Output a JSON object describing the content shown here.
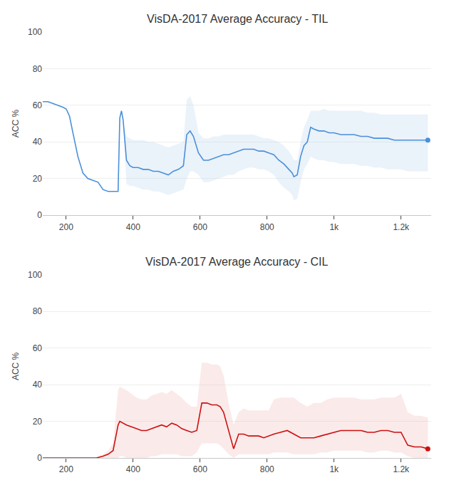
{
  "chart_data": [
    {
      "type": "line",
      "title": "VisDA-2017 Average Accuracy - TIL",
      "ylabel": "ACC %",
      "xlim": [
        130,
        1290
      ],
      "xticks": [
        200,
        400,
        600,
        800,
        {
          "value": 1000,
          "label": "1k"
        },
        {
          "value": 1200,
          "label": "1.2k"
        }
      ],
      "ylim": [
        0,
        100
      ],
      "yticks": [
        0,
        20,
        40,
        60,
        80,
        100
      ],
      "grid": true,
      "x": [
        130,
        145,
        160,
        175,
        190,
        200,
        210,
        220,
        235,
        250,
        265,
        280,
        295,
        310,
        325,
        340,
        355,
        360,
        365,
        370,
        380,
        390,
        400,
        415,
        430,
        445,
        460,
        475,
        490,
        505,
        520,
        535,
        550,
        560,
        570,
        580,
        595,
        610,
        625,
        640,
        655,
        670,
        685,
        700,
        715,
        730,
        745,
        760,
        775,
        790,
        805,
        820,
        835,
        850,
        865,
        875,
        880,
        890,
        900,
        910,
        920,
        930,
        940,
        955,
        970,
        985,
        1000,
        1020,
        1040,
        1060,
        1080,
        1100,
        1120,
        1140,
        1160,
        1180,
        1200,
        1220,
        1240,
        1260,
        1280
      ],
      "series": [
        {
          "type": "area",
          "color": "#b8d4ee",
          "upper": [
            62,
            62,
            61,
            60,
            59,
            58,
            54,
            45,
            32,
            23,
            20,
            19,
            18,
            14,
            13,
            13,
            13,
            53,
            57,
            52,
            43,
            42,
            41,
            41,
            41,
            40,
            40,
            39,
            38,
            37,
            38,
            39,
            40,
            63,
            65,
            60,
            45,
            42,
            42,
            43,
            43,
            44,
            44,
            44,
            44,
            44,
            44,
            44,
            43,
            42,
            42,
            41,
            40,
            38,
            35,
            32,
            30,
            30,
            40,
            48,
            52,
            57,
            57,
            57,
            58,
            57,
            57,
            57,
            57,
            57,
            57,
            56,
            56,
            55,
            55,
            55,
            55,
            55,
            55,
            55,
            55
          ],
          "lower": [
            62,
            62,
            61,
            60,
            59,
            58,
            54,
            45,
            32,
            23,
            20,
            19,
            18,
            14,
            13,
            13,
            13,
            53,
            57,
            52,
            17,
            16,
            16,
            15,
            14,
            14,
            13,
            13,
            12,
            11,
            12,
            13,
            14,
            20,
            24,
            24,
            22,
            18,
            18,
            19,
            20,
            21,
            22,
            22,
            24,
            25,
            26,
            26,
            25,
            25,
            24,
            22,
            18,
            15,
            13,
            11,
            8,
            9,
            18,
            25,
            28,
            32,
            31,
            30,
            30,
            29,
            29,
            28,
            28,
            28,
            27,
            27,
            26,
            26,
            25,
            25,
            25,
            24,
            24,
            24,
            24
          ]
        },
        {
          "type": "line",
          "color": "#4a90d9",
          "marker": "end",
          "values": [
            62,
            62,
            61,
            60,
            59,
            58,
            54,
            45,
            32,
            23,
            20,
            19,
            18,
            14,
            13,
            13,
            13,
            53,
            57,
            52,
            30,
            27,
            26,
            26,
            25,
            25,
            24,
            24,
            23,
            22,
            24,
            25,
            27,
            44,
            46,
            43,
            34,
            30,
            30,
            31,
            32,
            33,
            33,
            34,
            35,
            36,
            36,
            36,
            35,
            35,
            34,
            33,
            30,
            28,
            25,
            23,
            21,
            22,
            32,
            38,
            40,
            48,
            47,
            46,
            46,
            45,
            45,
            44,
            44,
            44,
            43,
            43,
            42,
            42,
            42,
            41,
            41,
            41,
            41,
            41,
            41
          ]
        }
      ]
    },
    {
      "type": "line",
      "title": "VisDA-2017 Average Accuracy - CIL",
      "ylabel": "ACC %",
      "xlim": [
        130,
        1290
      ],
      "xticks": [
        200,
        400,
        600,
        800,
        {
          "value": 1000,
          "label": "1k"
        },
        {
          "value": 1200,
          "label": "1.2k"
        }
      ],
      "ylim": [
        0,
        100
      ],
      "yticks": [
        0,
        20,
        40,
        60,
        80,
        100
      ],
      "grid": true,
      "x": [
        130,
        150,
        175,
        200,
        230,
        260,
        290,
        310,
        325,
        340,
        355,
        360,
        370,
        380,
        395,
        410,
        425,
        440,
        455,
        470,
        485,
        500,
        515,
        530,
        545,
        560,
        575,
        590,
        605,
        620,
        635,
        650,
        660,
        670,
        685,
        700,
        715,
        730,
        745,
        760,
        775,
        790,
        805,
        820,
        840,
        860,
        880,
        900,
        920,
        940,
        960,
        980,
        1000,
        1020,
        1040,
        1060,
        1080,
        1100,
        1120,
        1140,
        1160,
        1180,
        1200,
        1220,
        1240,
        1260,
        1280
      ],
      "series": [
        {
          "type": "area",
          "color": "#f2b8b8",
          "upper": [
            0,
            0,
            0,
            0,
            0,
            0,
            0,
            2,
            4,
            8,
            37,
            39,
            38,
            37,
            35,
            33,
            32,
            32,
            34,
            35,
            36,
            35,
            37,
            35,
            33,
            30,
            28,
            28,
            52,
            52,
            51,
            51,
            50,
            45,
            30,
            18,
            25,
            27,
            26,
            26,
            26,
            26,
            26,
            32,
            33,
            33,
            33,
            30,
            28,
            30,
            30,
            32,
            33,
            33,
            33,
            33,
            32,
            32,
            32,
            33,
            33,
            33,
            35,
            25,
            23,
            23,
            22
          ],
          "lower": [
            0,
            0,
            0,
            0,
            0,
            0,
            0,
            0,
            0,
            0,
            0,
            1,
            1,
            0,
            0,
            0,
            0,
            0,
            1,
            1,
            2,
            2,
            2,
            2,
            1,
            1,
            1,
            3,
            8,
            8,
            8,
            8,
            7,
            5,
            2,
            0,
            2,
            2,
            2,
            2,
            2,
            2,
            2,
            3,
            3,
            3,
            2,
            2,
            2,
            2,
            3,
            3,
            4,
            4,
            4,
            4,
            4,
            3,
            3,
            4,
            4,
            3,
            3,
            1,
            0,
            0,
            0
          ]
        },
        {
          "type": "line",
          "color": "#cc1111",
          "marker": "end",
          "values": [
            0,
            0,
            0,
            0,
            0,
            0,
            0,
            1,
            2,
            4,
            18,
            20,
            19,
            18,
            17,
            16,
            15,
            15,
            16,
            17,
            18,
            17,
            19,
            18,
            16,
            15,
            14,
            15,
            30,
            30,
            29,
            29,
            28,
            25,
            15,
            5,
            13,
            13,
            12,
            12,
            12,
            11,
            12,
            13,
            14,
            15,
            13,
            11,
            11,
            11,
            12,
            13,
            14,
            15,
            15,
            15,
            15,
            14,
            14,
            15,
            15,
            14,
            14,
            7,
            6,
            6,
            5
          ]
        }
      ]
    }
  ]
}
